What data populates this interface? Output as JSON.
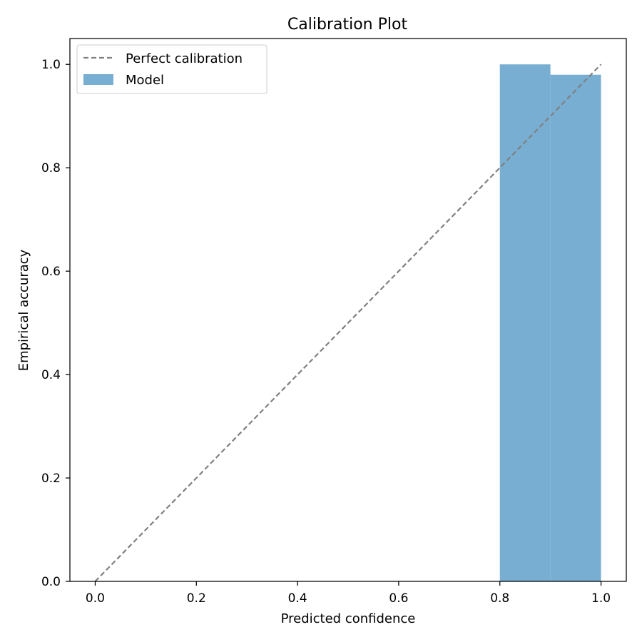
{
  "chart_data": {
    "type": "bar",
    "title": "Calibration Plot",
    "xlabel": "Predicted confidence",
    "ylabel": "Empirical accuracy",
    "xlim": [
      -0.05,
      1.05
    ],
    "ylim": [
      0.0,
      1.05
    ],
    "xticks": [
      "0.0",
      "0.2",
      "0.4",
      "0.6",
      "0.8",
      "1.0"
    ],
    "yticks": [
      "0.0",
      "0.2",
      "0.4",
      "0.6",
      "0.8",
      "1.0"
    ],
    "grid": false,
    "legend_position": "top-left",
    "reference_line": {
      "name": "Perfect calibration",
      "x": [
        0.0,
        1.0
      ],
      "y": [
        0.0,
        1.0
      ],
      "style": "dashed",
      "color": "#808080"
    },
    "bars": {
      "name": "Model",
      "color": "#77aed2",
      "bins": [
        {
          "x0": 0.8,
          "x1": 0.9,
          "value": 1.0
        },
        {
          "x0": 0.9,
          "x1": 1.0,
          "value": 0.98
        }
      ]
    }
  }
}
